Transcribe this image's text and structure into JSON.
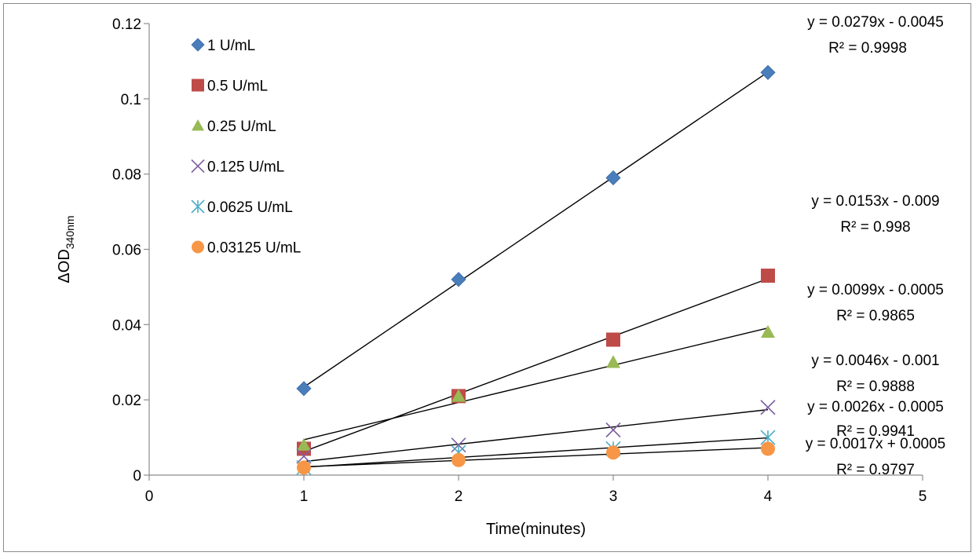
{
  "chart_data": {
    "type": "scatter",
    "xlabel": "Time(minutes)",
    "ylabel": {
      "main": "ΔOD",
      "sub": "340nm"
    },
    "xlim": [
      0,
      5
    ],
    "ylim": [
      0,
      0.12
    ],
    "xticks": [
      "0",
      "1",
      "2",
      "3",
      "4",
      "5"
    ],
    "yticks": [
      "0",
      "0.02",
      "0.04",
      "0.06",
      "0.08",
      "0.1",
      "0.12"
    ],
    "grid": false,
    "legend_position": "top-left",
    "series": [
      {
        "name": "1 U/mL",
        "marker": "diamond",
        "color": "#4A7EBB",
        "x": [
          1,
          2,
          3,
          4
        ],
        "y": [
          0.023,
          0.052,
          0.079,
          0.107
        ],
        "trend": {
          "slope": 0.0279,
          "intercept": -0.0045,
          "equation": "y = 0.0279x - 0.0045",
          "r2": "R² = 0.9998"
        }
      },
      {
        "name": "0.5 U/mL",
        "marker": "square",
        "color": "#BE4B48",
        "x": [
          1,
          2,
          3,
          4
        ],
        "y": [
          0.007,
          0.021,
          0.036,
          0.053
        ],
        "trend": {
          "slope": 0.0153,
          "intercept": -0.009,
          "equation": "y = 0.0153x - 0.009",
          "r2": "R² = 0.998"
        }
      },
      {
        "name": "0.25 U/mL",
        "marker": "triangle",
        "color": "#98B954",
        "x": [
          1,
          2,
          3,
          4
        ],
        "y": [
          0.008,
          0.021,
          0.03,
          0.038
        ],
        "trend": {
          "slope": 0.0099,
          "intercept": -0.0005,
          "equation": "y = 0.0099x - 0.0005",
          "r2": "R² = 0.9865"
        }
      },
      {
        "name": "0.125 U/mL",
        "marker": "x",
        "color": "#7D60A0",
        "x": [
          1,
          2,
          3,
          4
        ],
        "y": [
          0.005,
          0.008,
          0.012,
          0.018
        ],
        "trend": {
          "slope": 0.0046,
          "intercept": -0.001,
          "equation": "y = 0.0046x - 0.001",
          "r2": "R² = 0.9888"
        }
      },
      {
        "name": "0.0625 U/mL",
        "marker": "star",
        "color": "#4BACC6",
        "x": [
          1,
          2,
          3,
          4
        ],
        "y": [
          0.002,
          0.006,
          0.007,
          0.01
        ],
        "trend": {
          "slope": 0.0026,
          "intercept": -0.0005,
          "equation": "y = 0.0026x - 0.0005",
          "r2": "R² = 0.9941"
        }
      },
      {
        "name": "0.03125 U/mL",
        "marker": "circle",
        "color": "#F79646",
        "x": [
          1,
          2,
          3,
          4
        ],
        "y": [
          0.002,
          0.004,
          0.006,
          0.007
        ],
        "trend": {
          "slope": 0.0017,
          "intercept": 0.0005,
          "equation": "y = 0.0017x + 0.0005",
          "r2": "R² = 0.9797"
        }
      }
    ]
  }
}
